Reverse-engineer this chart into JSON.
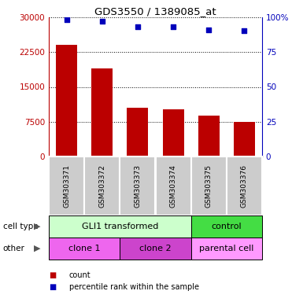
{
  "title": "GDS3550 / 1389085_at",
  "samples": [
    "GSM303371",
    "GSM303372",
    "GSM303373",
    "GSM303374",
    "GSM303375",
    "GSM303376"
  ],
  "counts": [
    24000,
    19000,
    10500,
    10200,
    8800,
    7500
  ],
  "percentile_ranks": [
    98.5,
    97.0,
    93.5,
    93.5,
    91.0,
    90.5
  ],
  "ylim_left": [
    0,
    30000
  ],
  "ylim_right": [
    0,
    100
  ],
  "yticks_left": [
    0,
    7500,
    15000,
    22500,
    30000
  ],
  "yticks_right": [
    0,
    25,
    50,
    75,
    100
  ],
  "bar_color": "#bb0000",
  "dot_color": "#0000bb",
  "bg_color": "#ffffff",
  "cell_type_labels": [
    {
      "text": "GLI1 transformed",
      "start": 0,
      "end": 4,
      "color": "#ccffcc"
    },
    {
      "text": "control",
      "start": 4,
      "end": 6,
      "color": "#44dd44"
    }
  ],
  "other_labels": [
    {
      "text": "clone 1",
      "start": 0,
      "end": 2,
      "color": "#ee66ee"
    },
    {
      "text": "clone 2",
      "start": 2,
      "end": 4,
      "color": "#cc44cc"
    },
    {
      "text": "parental cell",
      "start": 4,
      "end": 6,
      "color": "#ff99ff"
    }
  ],
  "row_label_cell_type": "cell type",
  "row_label_other": "other",
  "legend_count_label": "count",
  "legend_pct_label": "percentile rank within the sample",
  "tick_bg_color": "#cccccc",
  "label_text_color": "#555555"
}
